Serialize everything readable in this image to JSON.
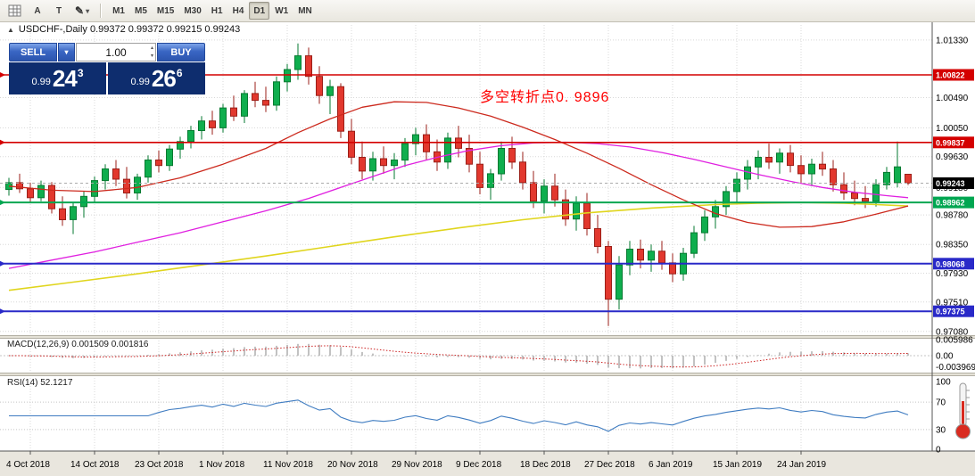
{
  "icons": {
    "triangle_up": "▲",
    "chevron_down": "▾",
    "spinner_up": "▴",
    "spinner_down": "▾",
    "pencil": "✎"
  },
  "toolbar": {
    "a_label": "A",
    "t_label": "T",
    "timeframes": {
      "items": [
        "M1",
        "M5",
        "M15",
        "M30",
        "H1",
        "H4",
        "D1",
        "W1",
        "MN"
      ],
      "active": "D1"
    }
  },
  "chart": {
    "header": "USDCHF-,Daily  0.99372 0.99372 0.99215 0.99243",
    "macd_label": "MACD(12,26,9) 0.001509 0.001816",
    "rsi_label": "RSI(14) 52.1217"
  },
  "trade_panel": {
    "sell_label": "SELL",
    "buy_label": "BUY",
    "volume": "1.00",
    "sell_price": {
      "prefix": "0.99",
      "big": "24",
      "sup": "3"
    },
    "buy_price": {
      "prefix": "0.99",
      "big": "26",
      "sup": "6"
    }
  },
  "annotation": {
    "text": "多空转折点0. 9896",
    "color": "#ff0000"
  },
  "chart_data": {
    "type": "candlestick",
    "symbol": "USDCHF-",
    "timeframe": "Daily",
    "last_ohlc": {
      "open": "0.99372",
      "high": "0.99372",
      "low": "0.99215",
      "close": "0.99243"
    },
    "candles": [
      [
        0.9915,
        0.9932,
        0.9906,
        0.9925
      ],
      [
        0.9925,
        0.9938,
        0.991,
        0.9916
      ],
      [
        0.9916,
        0.9925,
        0.9896,
        0.9903
      ],
      [
        0.9903,
        0.9928,
        0.9898,
        0.9921
      ],
      [
        0.9921,
        0.9926,
        0.988,
        0.9887
      ],
      [
        0.9887,
        0.9905,
        0.9862,
        0.9871
      ],
      [
        0.9871,
        0.9896,
        0.985,
        0.989
      ],
      [
        0.989,
        0.9912,
        0.9874,
        0.9905
      ],
      [
        0.9905,
        0.9934,
        0.9895,
        0.9928
      ],
      [
        0.9928,
        0.9952,
        0.9915,
        0.9945
      ],
      [
        0.9945,
        0.9958,
        0.992,
        0.993
      ],
      [
        0.993,
        0.9948,
        0.9902,
        0.991
      ],
      [
        0.991,
        0.9938,
        0.99,
        0.9933
      ],
      [
        0.9933,
        0.9965,
        0.9925,
        0.9958
      ],
      [
        0.9958,
        0.9972,
        0.994,
        0.995
      ],
      [
        0.995,
        0.998,
        0.9942,
        0.9974
      ],
      [
        0.9974,
        0.9992,
        0.996,
        0.9985
      ],
      [
        0.9985,
        1.0008,
        0.9975,
        1.0001
      ],
      [
        1.0001,
        1.0022,
        0.9988,
        1.0015
      ],
      [
        1.0015,
        1.003,
        0.9995,
        1.0005
      ],
      [
        1.0005,
        1.004,
        0.9998,
        1.0034
      ],
      [
        1.0034,
        1.0052,
        1.0015,
        1.0022
      ],
      [
        1.0022,
        1.006,
        1.0012,
        1.0055
      ],
      [
        1.0055,
        1.0072,
        1.0035,
        1.0045
      ],
      [
        1.0045,
        1.0065,
        1.0028,
        1.0038
      ],
      [
        1.0038,
        1.008,
        1.003,
        1.0072
      ],
      [
        1.0072,
        1.0098,
        1.0058,
        1.009
      ],
      [
        1.009,
        1.0128,
        1.0075,
        1.011
      ],
      [
        1.011,
        1.0122,
        1.0068,
        1.008
      ],
      [
        1.008,
        1.0095,
        1.004,
        1.0052
      ],
      [
        1.0052,
        1.0075,
        1.0025,
        1.0065
      ],
      [
        1.0065,
        1.007,
        0.999,
        1.0
      ],
      [
        1.0,
        1.0018,
        0.9952,
        0.9962
      ],
      [
        0.9962,
        0.9985,
        0.993,
        0.9942
      ],
      [
        0.9942,
        0.997,
        0.9928,
        0.996
      ],
      [
        0.996,
        0.9978,
        0.9938,
        0.995
      ],
      [
        0.995,
        0.9968,
        0.993,
        0.9958
      ],
      [
        0.9958,
        0.999,
        0.9948,
        0.9982
      ],
      [
        0.9982,
        1.0005,
        0.9965,
        0.9995
      ],
      [
        0.9995,
        1.001,
        0.9958,
        0.997
      ],
      [
        0.997,
        0.9988,
        0.9942,
        0.9955
      ],
      [
        0.9955,
        0.9998,
        0.9945,
        0.999
      ],
      [
        0.999,
        1.0008,
        0.9962,
        0.9975
      ],
      [
        0.9975,
        0.9995,
        0.994,
        0.9952
      ],
      [
        0.9952,
        0.997,
        0.9908,
        0.9918
      ],
      [
        0.9918,
        0.9945,
        0.99,
        0.9938
      ],
      [
        0.9938,
        0.9985,
        0.9928,
        0.9975
      ],
      [
        0.9975,
        0.9992,
        0.9945,
        0.9955
      ],
      [
        0.9955,
        0.997,
        0.9915,
        0.9925
      ],
      [
        0.9925,
        0.9942,
        0.9888,
        0.9898
      ],
      [
        0.9898,
        0.993,
        0.988,
        0.992
      ],
      [
        0.992,
        0.9938,
        0.989,
        0.99
      ],
      [
        0.99,
        0.9915,
        0.9862,
        0.9872
      ],
      [
        0.9872,
        0.9905,
        0.9855,
        0.9895
      ],
      [
        0.9895,
        0.991,
        0.9848,
        0.9858
      ],
      [
        0.9858,
        0.9878,
        0.9822,
        0.9832
      ],
      [
        0.9832,
        0.984,
        0.9716,
        0.9755
      ],
      [
        0.9755,
        0.9818,
        0.974,
        0.9805
      ],
      [
        0.9805,
        0.984,
        0.979,
        0.9828
      ],
      [
        0.9828,
        0.9842,
        0.98,
        0.9812
      ],
      [
        0.9812,
        0.9835,
        0.9795,
        0.9825
      ],
      [
        0.9825,
        0.984,
        0.9798,
        0.9808
      ],
      [
        0.9808,
        0.9822,
        0.978,
        0.9792
      ],
      [
        0.9792,
        0.983,
        0.9782,
        0.9822
      ],
      [
        0.9822,
        0.9862,
        0.9815,
        0.9852
      ],
      [
        0.9852,
        0.9885,
        0.984,
        0.9875
      ],
      [
        0.9875,
        0.99,
        0.9858,
        0.989
      ],
      [
        0.989,
        0.992,
        0.9878,
        0.9912
      ],
      [
        0.9912,
        0.994,
        0.9895,
        0.993
      ],
      [
        0.993,
        0.9958,
        0.9915,
        0.9948
      ],
      [
        0.9948,
        0.9972,
        0.993,
        0.9962
      ],
      [
        0.9962,
        0.9982,
        0.9945,
        0.9955
      ],
      [
        0.9955,
        0.9975,
        0.9938,
        0.9968
      ],
      [
        0.9968,
        0.998,
        0.994,
        0.995
      ],
      [
        0.995,
        0.9965,
        0.9925,
        0.9938
      ],
      [
        0.9938,
        0.996,
        0.992,
        0.9952
      ],
      [
        0.9952,
        0.997,
        0.9935,
        0.9945
      ],
      [
        0.9945,
        0.9958,
        0.9912,
        0.9922
      ],
      [
        0.9922,
        0.994,
        0.99,
        0.991
      ],
      [
        0.991,
        0.9928,
        0.9892,
        0.9902
      ],
      [
        0.9902,
        0.992,
        0.9888,
        0.9898
      ],
      [
        0.9898,
        0.993,
        0.989,
        0.9922
      ],
      [
        0.9922,
        0.9948,
        0.9915,
        0.994
      ],
      [
        0.9925,
        0.9985,
        0.9918,
        0.9948
      ],
      [
        0.99372,
        0.99372,
        0.99215,
        0.99243
      ]
    ],
    "moving_averages": [
      {
        "name": "ma-slow-yellow",
        "color": "#e0d51d",
        "width": 1.6,
        "points": [
          [
            0,
            0.9768
          ],
          [
            6,
            0.978
          ],
          [
            12,
            0.9792
          ],
          [
            18,
            0.9805
          ],
          [
            24,
            0.9818
          ],
          [
            30,
            0.9832
          ],
          [
            36,
            0.9846
          ],
          [
            42,
            0.9859
          ],
          [
            48,
            0.9871
          ],
          [
            54,
            0.9881
          ],
          [
            60,
            0.9888
          ],
          [
            66,
            0.9893
          ],
          [
            70,
            0.9895
          ],
          [
            74,
            0.9896
          ],
          [
            78,
            0.9895
          ],
          [
            81,
            0.9893
          ],
          [
            84,
            0.9891
          ]
        ]
      },
      {
        "name": "ma-mid-magenta",
        "color": "#e020e0",
        "width": 1.3,
        "points": [
          [
            0,
            0.98
          ],
          [
            4,
            0.9812
          ],
          [
            8,
            0.9824
          ],
          [
            12,
            0.9838
          ],
          [
            16,
            0.9852
          ],
          [
            20,
            0.9868
          ],
          [
            24,
            0.9884
          ],
          [
            28,
            0.9902
          ],
          [
            31,
            0.9918
          ],
          [
            34,
            0.9934
          ],
          [
            37,
            0.995
          ],
          [
            40,
            0.9962
          ],
          [
            43,
            0.9972
          ],
          [
            46,
            0.9979
          ],
          [
            49,
            0.9983
          ],
          [
            52,
            0.9984
          ],
          [
            55,
            0.9982
          ],
          [
            58,
            0.9977
          ],
          [
            61,
            0.9969
          ],
          [
            64,
            0.9959
          ],
          [
            67,
            0.9948
          ],
          [
            70,
            0.9937
          ],
          [
            73,
            0.9927
          ],
          [
            76,
            0.9918
          ],
          [
            79,
            0.9911
          ],
          [
            82,
            0.9906
          ],
          [
            84,
            0.9903
          ]
        ]
      },
      {
        "name": "ma-fast-red",
        "color": "#cc2a1e",
        "width": 1.3,
        "points": [
          [
            0,
            0.992
          ],
          [
            4,
            0.9914
          ],
          [
            8,
            0.9912
          ],
          [
            12,
            0.9918
          ],
          [
            16,
            0.9932
          ],
          [
            20,
            0.9952
          ],
          [
            24,
            0.9975
          ],
          [
            27,
            0.9998
          ],
          [
            30,
            1.0018
          ],
          [
            33,
            1.0035
          ],
          [
            36,
            1.0043
          ],
          [
            39,
            1.0042
          ],
          [
            42,
            1.0034
          ],
          [
            45,
            1.0022
          ],
          [
            48,
            1.0006
          ],
          [
            51,
            0.9988
          ],
          [
            54,
            0.9968
          ],
          [
            57,
            0.9946
          ],
          [
            60,
            0.9922
          ],
          [
            63,
            0.99
          ],
          [
            66,
            0.988
          ],
          [
            69,
            0.9867
          ],
          [
            72,
            0.986
          ],
          [
            75,
            0.9861
          ],
          [
            78,
            0.9868
          ],
          [
            81,
            0.9879
          ],
          [
            84,
            0.9891
          ]
        ]
      }
    ],
    "hlines": [
      {
        "price": 1.00822,
        "label": "1.00822",
        "color": "#d40000",
        "width": 1.6
      },
      {
        "price": 0.99837,
        "label": "0.99837",
        "color": "#d40000",
        "width": 1.6
      },
      {
        "price": 0.98962,
        "label": "0.98962",
        "color": "#00a651",
        "width": 2
      },
      {
        "price": 0.98068,
        "label": "0.98068",
        "color": "#2929c8",
        "width": 2
      },
      {
        "price": 0.97375,
        "label": "0.97375",
        "color": "#2929c8",
        "width": 2
      }
    ],
    "current_price": {
      "value": 0.99243,
      "label": "0.99243",
      "tag_color": "#000000"
    },
    "price_axis_labels": [
      {
        "text": "1.01330",
        "price": 1.0133
      },
      {
        "text": "1.00490",
        "price": 1.0049
      },
      {
        "text": "1.00050",
        "price": 1.0005
      },
      {
        "text": "0.99630",
        "price": 0.9963
      },
      {
        "text": "0.99180",
        "price": 0.9918
      },
      {
        "text": "0.98780",
        "price": 0.9878
      },
      {
        "text": "0.98350",
        "price": 0.9835
      },
      {
        "text": "0.97930",
        "price": 0.9793
      },
      {
        "text": "0.97510",
        "price": 0.9751
      },
      {
        "text": "0.97080",
        "price": 0.9708
      }
    ],
    "indicators": {
      "macd": {
        "label": "MACD(12,26,9)",
        "values_text": "0.001509 0.001816",
        "fast": 12,
        "slow": 26,
        "signal": 9,
        "axis": [
          {
            "text": "0.005986",
            "v": 0.005986
          },
          {
            "text": "0.00",
            "v": 0
          },
          {
            "text": "-0.003969",
            "v": -0.003969
          }
        ]
      },
      "rsi": {
        "label": "RSI(14)",
        "value_text": "52.1217",
        "period": 14,
        "levels": [
          70,
          30
        ],
        "axis": [
          {
            "text": "100",
            "v": 100
          },
          {
            "text": "70",
            "v": 70
          },
          {
            "text": "30",
            "v": 30
          },
          {
            "text": "0",
            "v": 0
          }
        ]
      }
    },
    "date_axis": [
      {
        "label": "4 Oct 2018",
        "i": 2
      },
      {
        "label": "14 Oct 2018",
        "i": 8
      },
      {
        "label": "23 Oct 2018",
        "i": 14
      },
      {
        "label": "1 Nov 2018",
        "i": 20
      },
      {
        "label": "11 Nov 2018",
        "i": 26
      },
      {
        "label": "20 Nov 2018",
        "i": 32
      },
      {
        "label": "29 Nov 2018",
        "i": 38
      },
      {
        "label": "9 Dec 2018",
        "i": 44
      },
      {
        "label": "18 Dec 2018",
        "i": 50
      },
      {
        "label": "27 Dec 2018",
        "i": 56
      },
      {
        "label": "6 Jan 2019",
        "i": 62
      },
      {
        "label": "15 Jan 2019",
        "i": 68
      },
      {
        "label": "24 Jan 2019",
        "i": 74
      }
    ]
  }
}
